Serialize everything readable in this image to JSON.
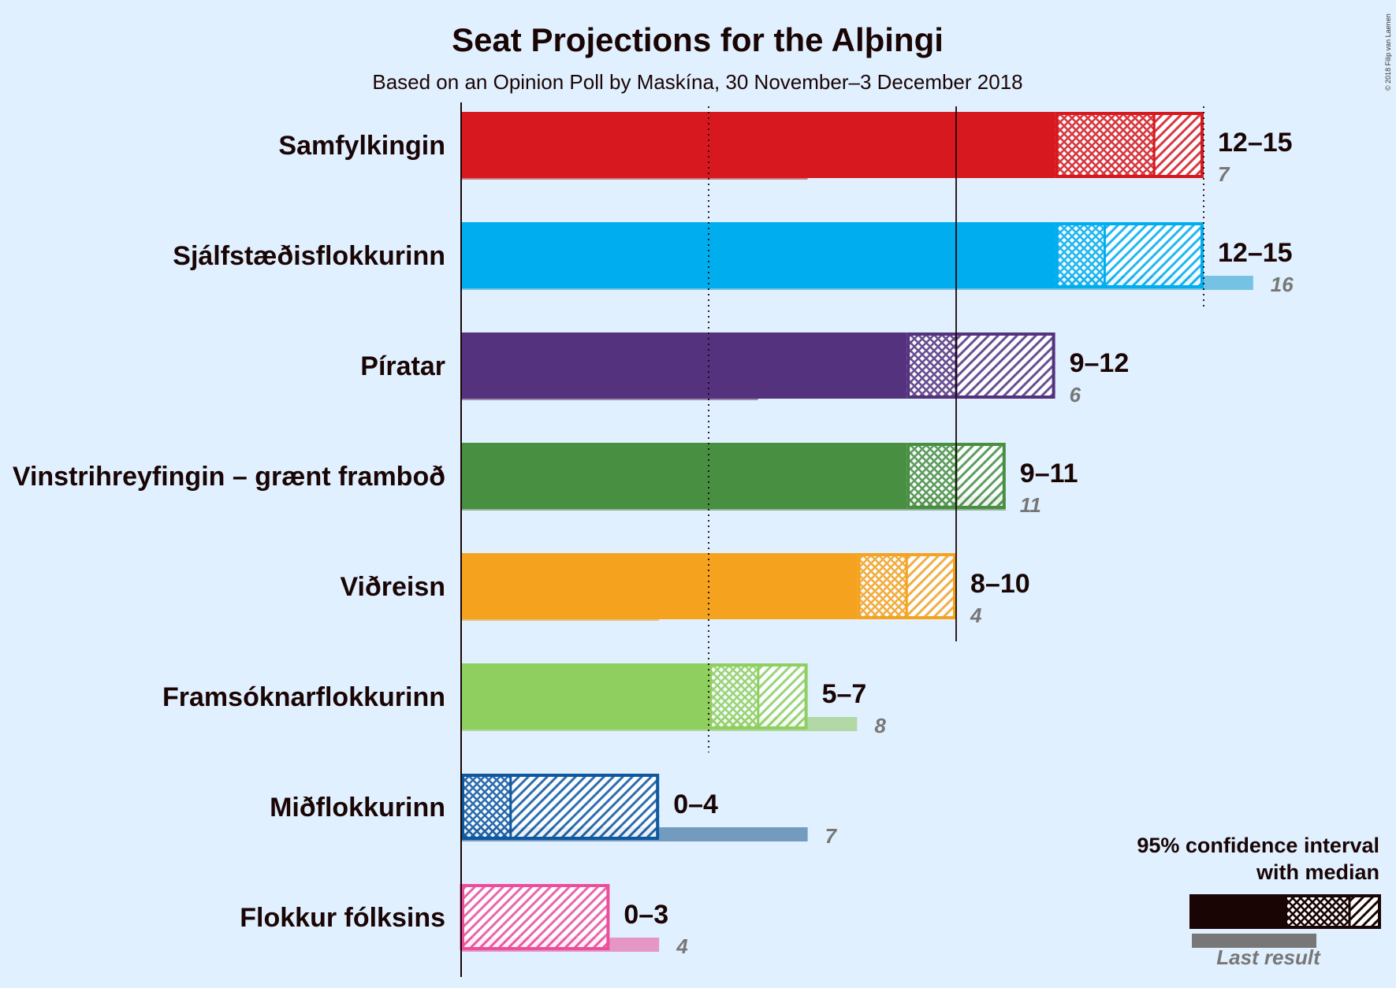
{
  "copyright": "© 2018 Filip van Laenen",
  "chart_data": {
    "type": "bar",
    "title": "Seat Projections for the Alþingi",
    "subtitle": "Based on an Opinion Poll by Maskína, 30 November–3 December 2018",
    "x_range": [
      0,
      15
    ],
    "grid": "vertical lines at 5 (dotted) and 10 (solid) seats; 15 dotted",
    "parties": [
      {
        "name": "Samfylkingin",
        "color": "#d7191f",
        "last_color": "#c97f85",
        "median_bar": 12,
        "ci_low": 12,
        "median": 14,
        "ci_high": 15,
        "range_label": "12–15",
        "last_result": 7,
        "last_label": "7"
      },
      {
        "name": "Sjálfstæðisflokkurinn",
        "color": "#00adef",
        "last_color": "#76c2e5",
        "median_bar": 12,
        "ci_low": 12,
        "median": 13,
        "ci_high": 15,
        "range_label": "12–15",
        "last_result": 16,
        "last_label": "16"
      },
      {
        "name": "Píratar",
        "color": "#54327d",
        "last_color": "#9a8bab",
        "median_bar": 9,
        "ci_low": 9,
        "median": 10,
        "ci_high": 12,
        "range_label": "9–12",
        "last_result": 6,
        "last_label": "6"
      },
      {
        "name": "Vinstrihreyfingin – grænt framboð",
        "color": "#488f42",
        "last_color": "#93b19c",
        "median_bar": 9,
        "ci_low": 9,
        "median": 10,
        "ci_high": 11,
        "range_label": "9–11",
        "last_result": 11,
        "last_label": "11"
      },
      {
        "name": "Viðreisn",
        "color": "#f5a31f",
        "last_color": "#dfc48e",
        "median_bar": 8,
        "ci_low": 8,
        "median": 9,
        "ci_high": 10,
        "range_label": "8–10",
        "last_result": 4,
        "last_label": "4"
      },
      {
        "name": "Framsóknarflokkurinn",
        "color": "#8ecf60",
        "last_color": "#b2d9a5",
        "median_bar": 5,
        "ci_low": 5,
        "median": 6,
        "ci_high": 7,
        "range_label": "5–7",
        "last_result": 8,
        "last_label": "8"
      },
      {
        "name": "Miðflokkurinn",
        "color": "#0f579f",
        "last_color": "#739abf",
        "median_bar": 0,
        "ci_low": 0,
        "median": 1,
        "ci_high": 4,
        "range_label": "0–4",
        "last_result": 7,
        "last_label": "7"
      },
      {
        "name": "Flokkur fólksins",
        "color": "#ec4e9c",
        "last_color": "#e597c4",
        "median_bar": 0,
        "ci_low": 0,
        "median": 0,
        "ci_high": 3,
        "range_label": "0–3",
        "last_result": 4,
        "last_label": "4"
      }
    ],
    "legend": {
      "position": "bottom-right",
      "line1": "95% confidence interval",
      "line2": "with median",
      "last_label": "Last result"
    }
  }
}
